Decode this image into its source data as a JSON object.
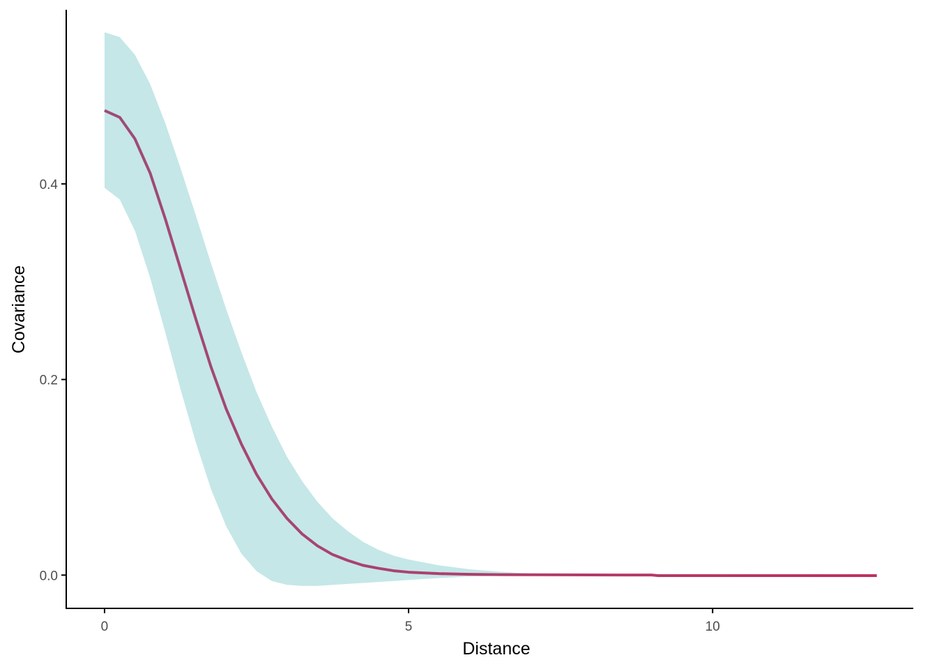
{
  "chart_data": {
    "type": "line",
    "title": "",
    "xlabel": "Distance",
    "ylabel": "Covariance",
    "xlim": [
      -0.63,
      13.3
    ],
    "ylim": [
      -0.034,
      0.578
    ],
    "x_ticks": [
      0,
      5,
      10
    ],
    "x_tick_labels": [
      "0",
      "5",
      "10"
    ],
    "y_ticks": [
      0.0,
      0.2,
      0.4
    ],
    "y_tick_labels": [
      "0.0",
      "0.2",
      "0.4"
    ],
    "grid": false,
    "legend": "none",
    "colors": {
      "line_start": "#9e4b78",
      "line_end": "#c0305f",
      "ribbon": "#c5e7e8",
      "axis": "#000000",
      "tick_text": "#4d4d4d"
    },
    "series": [
      {
        "x": [
          0,
          0.25,
          0.5,
          0.75,
          1.0,
          1.25,
          1.5,
          1.75,
          2.0,
          2.25,
          2.5,
          2.75,
          3.0,
          3.25,
          3.5,
          3.75,
          4.0,
          4.25,
          4.5,
          4.75,
          5.0,
          5.5,
          6.0,
          6.5,
          7.0,
          8.0,
          9.0,
          9.1,
          10.0,
          11.0,
          12.0,
          12.7
        ],
        "y": [
          0.475,
          0.468,
          0.446,
          0.411,
          0.364,
          0.313,
          0.262,
          0.213,
          0.17,
          0.134,
          0.103,
          0.078,
          0.058,
          0.042,
          0.03,
          0.021,
          0.015,
          0.01,
          0.007,
          0.0045,
          0.003,
          0.0015,
          0.0008,
          0.0005,
          0.0004,
          0.0002,
          0.0001,
          -0.0005,
          -0.0005,
          -0.0005,
          -0.0005,
          -0.0005
        ],
        "lower": [
          0.396,
          0.384,
          0.352,
          0.304,
          0.248,
          0.19,
          0.136,
          0.088,
          0.05,
          0.022,
          0.004,
          -0.006,
          -0.01,
          -0.011,
          -0.011,
          -0.01,
          -0.009,
          -0.008,
          -0.007,
          -0.006,
          -0.005,
          -0.003,
          -0.0015,
          -0.0008,
          -0.0004,
          -0.0002,
          -0.0001,
          -0.0005,
          -0.0005,
          -0.0005,
          -0.0005,
          -0.0005
        ],
        "upper": [
          0.555,
          0.55,
          0.532,
          0.502,
          0.462,
          0.416,
          0.368,
          0.319,
          0.272,
          0.228,
          0.187,
          0.152,
          0.121,
          0.096,
          0.075,
          0.058,
          0.045,
          0.034,
          0.026,
          0.02,
          0.016,
          0.01,
          0.006,
          0.0035,
          0.0015,
          0.0006,
          0.0002,
          -0.0005,
          -0.0005,
          -0.0005,
          -0.0005,
          -0.0005
        ]
      }
    ]
  }
}
